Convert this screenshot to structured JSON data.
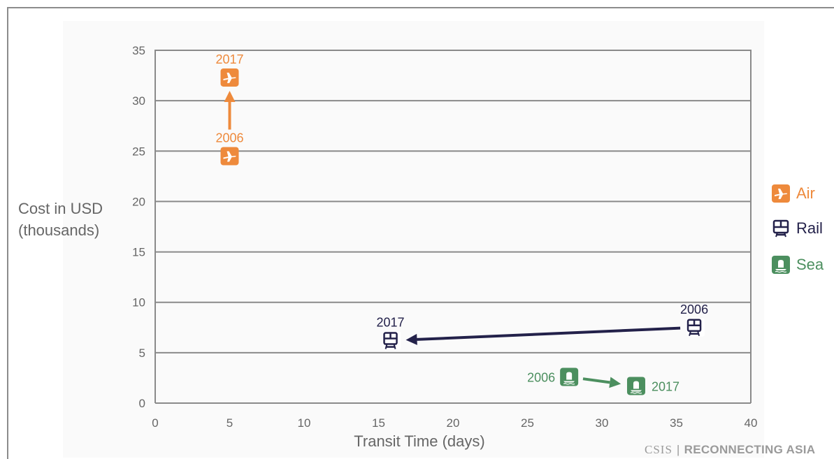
{
  "chart_data": {
    "type": "scatter",
    "title": "",
    "xlabel": "Transit Time (days)",
    "ylabel_lines": [
      "Cost in USD",
      "(thousands)"
    ],
    "xlim": [
      0,
      40
    ],
    "ylim": [
      0,
      35
    ],
    "x_ticks": [
      0,
      5,
      10,
      15,
      20,
      25,
      30,
      35,
      40
    ],
    "y_ticks": [
      0,
      5,
      10,
      15,
      20,
      25,
      30,
      35
    ],
    "grid": "horizontal",
    "legend_position": "right",
    "series": [
      {
        "name": "Air",
        "color": "#ee8a3c",
        "icon": "airplane-icon",
        "points": [
          {
            "label": "2006",
            "x": 5,
            "y": 24.5
          },
          {
            "label": "2017",
            "x": 5,
            "y": 32.3
          }
        ]
      },
      {
        "name": "Rail",
        "color": "#23214a",
        "icon": "train-icon",
        "points": [
          {
            "label": "2006",
            "x": 36.2,
            "y": 7.5
          },
          {
            "label": "2017",
            "x": 15.8,
            "y": 6.2
          }
        ]
      },
      {
        "name": "Sea",
        "color": "#4c8f5f",
        "icon": "ship-icon",
        "points": [
          {
            "label": "2006",
            "x": 27.8,
            "y": 2.6
          },
          {
            "label": "2017",
            "x": 32.3,
            "y": 1.7
          }
        ]
      }
    ]
  },
  "credit": {
    "org": "CSIS",
    "separator": "|",
    "brand": "RECONNECTING ASIA"
  }
}
